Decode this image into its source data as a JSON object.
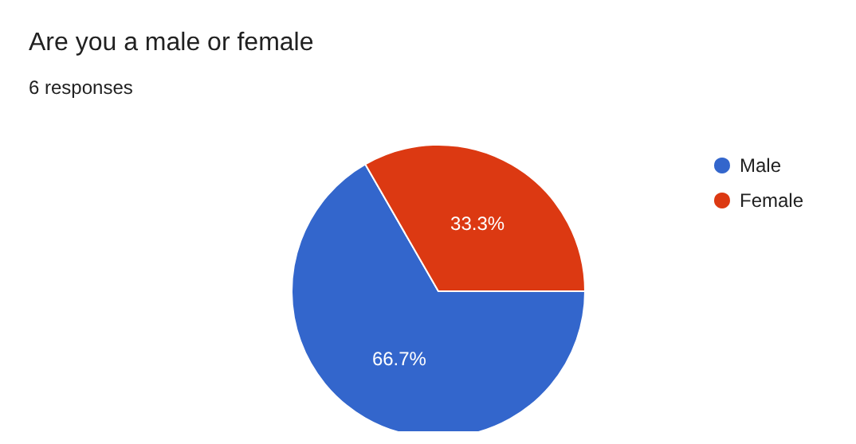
{
  "chart_data": {
    "type": "pie",
    "title": "Are you a male or female",
    "subtitle": "6 responses",
    "categories": [
      "Male",
      "Female"
    ],
    "values": [
      66.7,
      33.3
    ],
    "colors": [
      "#3366cc",
      "#dc3912"
    ],
    "value_labels": [
      "66.7%",
      "33.3%"
    ],
    "legend": "right"
  }
}
